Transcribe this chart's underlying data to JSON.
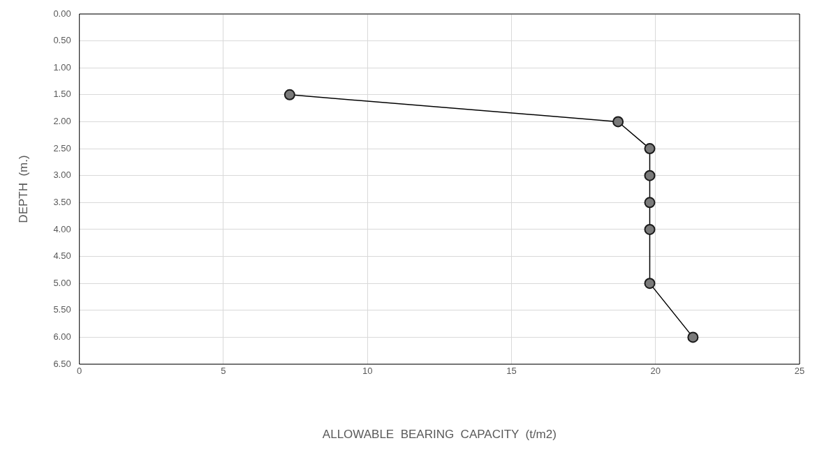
{
  "chart_data": {
    "type": "line",
    "xlabel": "ALLOWABLE  BEARING  CAPACITY  (t/m2)",
    "ylabel": "DEPTH  (m.)",
    "series": [
      {
        "color": "#000000",
        "x": [
          7.3,
          18.7,
          19.8,
          19.8,
          19.8,
          19.8,
          19.8,
          21.3
        ],
        "values": [
          1.5,
          2.0,
          2.5,
          3.0,
          3.5,
          4.0,
          5.0,
          6.0
        ]
      }
    ],
    "xlim": [
      0,
      25
    ],
    "xticks": [
      0,
      5,
      10,
      15,
      20,
      25
    ],
    "ylim": [
      6.5,
      0
    ],
    "yticks": [
      {
        "value": 0,
        "label": "0.00"
      },
      {
        "value": 0.5,
        "label": "0.50"
      },
      {
        "value": 1,
        "label": "1.00"
      },
      {
        "value": 1.5,
        "label": "1.50"
      },
      {
        "value": 2,
        "label": "2.00"
      },
      {
        "value": 2.5,
        "label": "2.50"
      },
      {
        "value": 3,
        "label": "3.00"
      },
      {
        "value": 3.5,
        "label": "3.50"
      },
      {
        "value": 4,
        "label": "4.00"
      },
      {
        "value": 4.5,
        "label": "4.50"
      },
      {
        "value": 5,
        "label": "5.00"
      },
      {
        "value": 5.5,
        "label": "5.50"
      },
      {
        "value": 6,
        "label": "6.00"
      },
      {
        "value": 6.5,
        "label": "6.50"
      }
    ],
    "grid": true,
    "marker": "circle",
    "line_style": "solid",
    "legend": false
  }
}
